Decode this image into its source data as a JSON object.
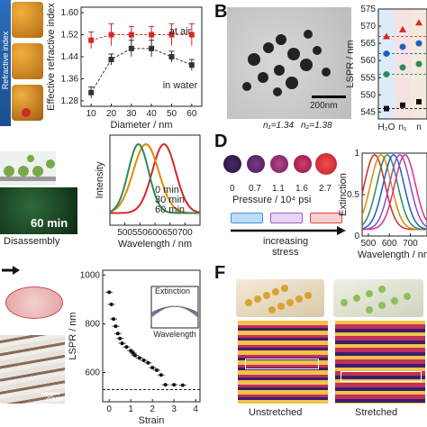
{
  "panel_letters": {
    "b": "B",
    "d": "D",
    "f": "F"
  },
  "colors": {
    "red": "#d62728",
    "dark": "#333333",
    "orange": "#e08a00",
    "green": "#2e8b57",
    "blue": "#1f5fbf",
    "purple": "#8a4fc4",
    "pink": "#d63384"
  },
  "panel_a": {
    "side_text": "Refractive index"
  },
  "panel_b": {
    "scalebar": "200nm",
    "n1": "n₁=1.34",
    "n2": "n₂=1.38",
    "x_ticks": [
      "H₂O",
      "n₁",
      "n"
    ]
  },
  "panel_c": {
    "label": "Disassembly",
    "time": "60 min"
  },
  "panel_d": {
    "pressure_values": [
      "0",
      "0.7",
      "1.1",
      "1.6",
      "2.7"
    ],
    "pressure_label": "Pressure / 10⁴ psi",
    "stress_label_1": "increasing",
    "stress_label_2": "stress"
  },
  "panel_e": {
    "scalebar": "20μm"
  },
  "panel_f": {
    "left_caption": "Unstretched",
    "right_caption": "Stretched"
  },
  "chart_data": [
    {
      "type": "line",
      "id": "refractive-index-vs-diameter",
      "xlabel": "Diameter / nm",
      "ylabel": "Effective refractive index",
      "xlim": [
        5,
        65
      ],
      "ylim": [
        1.26,
        1.62
      ],
      "x_ticks": [
        10,
        20,
        30,
        40,
        50,
        60
      ],
      "y_ticks": [
        1.28,
        1.36,
        1.44,
        1.52,
        1.6
      ],
      "series": [
        {
          "name": "at air",
          "color": "#d62728",
          "x": [
            10,
            20,
            30,
            40,
            50,
            60
          ],
          "y": [
            1.5,
            1.52,
            1.52,
            1.52,
            1.52,
            1.52
          ],
          "err": [
            0.03,
            0.04,
            0.03,
            0.03,
            0.04,
            0.04
          ]
        },
        {
          "name": "in water",
          "color": "#333333",
          "x": [
            10,
            20,
            30,
            40,
            50,
            60
          ],
          "y": [
            1.31,
            1.43,
            1.47,
            1.47,
            1.44,
            1.41
          ],
          "err": [
            0.02,
            0.02,
            0.03,
            0.03,
            0.02,
            0.02
          ]
        }
      ]
    },
    {
      "type": "scatter",
      "id": "lspr-vs-medium",
      "ylabel": "LSPR / nm",
      "ylim": [
        543,
        575
      ],
      "y_ticks": [
        545,
        550,
        555,
        560,
        565,
        570,
        575
      ],
      "series": [
        {
          "color": "#d62728",
          "y": [
            567,
            569,
            571
          ]
        },
        {
          "color": "#1f5fbf",
          "y": [
            562,
            564,
            565
          ]
        },
        {
          "color": "#2e8b57",
          "y": [
            556,
            558,
            559
          ]
        },
        {
          "color": "#111111",
          "y": [
            546,
            547,
            548
          ]
        }
      ]
    },
    {
      "type": "line",
      "id": "intensity-vs-wavelength",
      "xlabel": "Wavelength / nm",
      "ylabel": "Intensity",
      "xlim": [
        450,
        750
      ],
      "x_ticks": [
        500,
        550,
        600,
        650,
        700
      ],
      "series": [
        {
          "name": "0 min",
          "color": "#d62728",
          "peak": 630,
          "width": 55
        },
        {
          "name": "30 min",
          "color": "#e08a00",
          "peak": 570,
          "width": 60
        },
        {
          "name": "60 min",
          "color": "#2e8b57",
          "peak": 545,
          "width": 48
        }
      ]
    },
    {
      "type": "line",
      "id": "extinction-vs-wavelength",
      "xlabel": "Wavelength / nm",
      "ylabel": "Extinction",
      "xlim": [
        470,
        780
      ],
      "x_ticks": [
        500,
        600,
        700
      ],
      "y_ticks": [
        0,
        0.5,
        1
      ],
      "series": [
        {
          "color": "#d62728",
          "peak": 530
        },
        {
          "color": "#e08a00",
          "peak": 560
        },
        {
          "color": "#2e8b57",
          "peak": 590
        },
        {
          "color": "#1f5fbf",
          "peak": 620
        },
        {
          "color": "#8a4fc4",
          "peak": 650
        },
        {
          "color": "#d63384",
          "peak": 675
        }
      ]
    },
    {
      "type": "scatter",
      "id": "lspr-vs-strain",
      "xlabel": "Strain",
      "ylabel": "LSPR / nm",
      "xlim": [
        -0.3,
        4.2
      ],
      "ylim": [
        480,
        1020
      ],
      "x_ticks": [
        0,
        1,
        2,
        3,
        4
      ],
      "y_ticks": [
        600,
        800,
        1000
      ],
      "reference_y": 530,
      "x": [
        0,
        0.1,
        0.2,
        0.3,
        0.4,
        0.5,
        0.6,
        0.8,
        1.0,
        1.1,
        1.2,
        1.4,
        1.6,
        1.8,
        2.0,
        2.2,
        2.4,
        2.6,
        3.0,
        3.4
      ],
      "y": [
        930,
        880,
        820,
        790,
        760,
        740,
        720,
        705,
        690,
        680,
        670,
        660,
        650,
        640,
        620,
        610,
        590,
        550,
        550,
        548
      ],
      "inset": {
        "xlabel": "Wavelength",
        "ylabel": "Extinction"
      }
    }
  ]
}
